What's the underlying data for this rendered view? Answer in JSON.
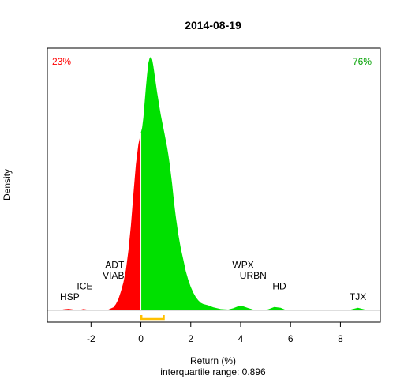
{
  "chart_data": {
    "type": "area",
    "title": "2014-08-19",
    "xlabel": "Return (%)",
    "ylabel": "Density",
    "subtitle": "interquartile range: 0.896",
    "xlim": [
      -3.75,
      9.6
    ],
    "ylim": [
      0,
      1.0
    ],
    "x_ticks": [
      -2,
      0,
      2,
      4,
      6,
      8
    ],
    "x_tick_labels": [
      "-2",
      "0",
      "2",
      "4",
      "6",
      "8"
    ],
    "split_at": 0,
    "left_percent_label": "23%",
    "right_percent_label": "76%",
    "colors": {
      "negative": "#ff0000",
      "positive": "#00e000",
      "iqr": "#ffc000",
      "baseline": "#bebebe"
    },
    "iqr": [
      0.02,
      0.916
    ],
    "density": [
      [
        -3.3,
        0
      ],
      [
        -3.1,
        0.004
      ],
      [
        -2.9,
        0.006
      ],
      [
        -2.7,
        0.003
      ],
      [
        -2.5,
        0.001
      ],
      [
        -2.3,
        0.005
      ],
      [
        -2.1,
        0.002
      ],
      [
        -1.9,
        0
      ],
      [
        -1.5,
        0
      ],
      [
        -1.3,
        0.003
      ],
      [
        -1.1,
        0.012
      ],
      [
        -1.0,
        0.025
      ],
      [
        -0.9,
        0.045
      ],
      [
        -0.8,
        0.075
      ],
      [
        -0.7,
        0.11
      ],
      [
        -0.6,
        0.16
      ],
      [
        -0.5,
        0.235
      ],
      [
        -0.4,
        0.335
      ],
      [
        -0.3,
        0.46
      ],
      [
        -0.2,
        0.575
      ],
      [
        -0.1,
        0.655
      ],
      [
        0.0,
        0.7
      ],
      [
        0.05,
        0.72
      ],
      [
        0.1,
        0.76
      ],
      [
        0.15,
        0.82
      ],
      [
        0.2,
        0.88
      ],
      [
        0.25,
        0.93
      ],
      [
        0.3,
        0.975
      ],
      [
        0.35,
        0.995
      ],
      [
        0.4,
        1.0
      ],
      [
        0.45,
        0.99
      ],
      [
        0.5,
        0.965
      ],
      [
        0.55,
        0.93
      ],
      [
        0.6,
        0.895
      ],
      [
        0.65,
        0.86
      ],
      [
        0.7,
        0.83
      ],
      [
        0.75,
        0.8
      ],
      [
        0.8,
        0.77
      ],
      [
        0.85,
        0.745
      ],
      [
        0.9,
        0.72
      ],
      [
        0.95,
        0.695
      ],
      [
        1.0,
        0.67
      ],
      [
        1.05,
        0.645
      ],
      [
        1.1,
        0.615
      ],
      [
        1.15,
        0.58
      ],
      [
        1.2,
        0.54
      ],
      [
        1.25,
        0.5
      ],
      [
        1.3,
        0.455
      ],
      [
        1.35,
        0.41
      ],
      [
        1.4,
        0.37
      ],
      [
        1.5,
        0.3
      ],
      [
        1.6,
        0.245
      ],
      [
        1.7,
        0.2
      ],
      [
        1.8,
        0.155
      ],
      [
        1.9,
        0.12
      ],
      [
        2.0,
        0.092
      ],
      [
        2.1,
        0.07
      ],
      [
        2.2,
        0.052
      ],
      [
        2.3,
        0.04
      ],
      [
        2.4,
        0.03
      ],
      [
        2.5,
        0.025
      ],
      [
        2.7,
        0.02
      ],
      [
        2.9,
        0.012
      ],
      [
        3.2,
        0.005
      ],
      [
        3.5,
        0.003
      ],
      [
        3.7,
        0.008
      ],
      [
        3.9,
        0.016
      ],
      [
        4.1,
        0.016
      ],
      [
        4.3,
        0.009
      ],
      [
        4.5,
        0.003
      ],
      [
        4.8,
        0.001
      ],
      [
        5.1,
        0.004
      ],
      [
        5.35,
        0.013
      ],
      [
        5.6,
        0.01
      ],
      [
        5.8,
        0.002
      ],
      [
        6.2,
        0
      ],
      [
        8.3,
        0
      ],
      [
        8.45,
        0.004
      ],
      [
        8.7,
        0.01
      ],
      [
        8.95,
        0.004
      ],
      [
        9.1,
        0
      ]
    ],
    "annotations": [
      {
        "label": "HSP",
        "x": -2.85,
        "y": 0.04
      },
      {
        "label": "ICE",
        "x": -2.25,
        "y": 0.082
      },
      {
        "label": "ADT",
        "x": -1.05,
        "y": 0.167
      },
      {
        "label": "VIAB",
        "x": -1.1,
        "y": 0.124
      },
      {
        "label": "WPX",
        "x": 4.1,
        "y": 0.167
      },
      {
        "label": "URBN",
        "x": 4.5,
        "y": 0.124
      },
      {
        "label": "HD",
        "x": 5.55,
        "y": 0.082
      },
      {
        "label": "TJX",
        "x": 8.7,
        "y": 0.04
      }
    ]
  }
}
